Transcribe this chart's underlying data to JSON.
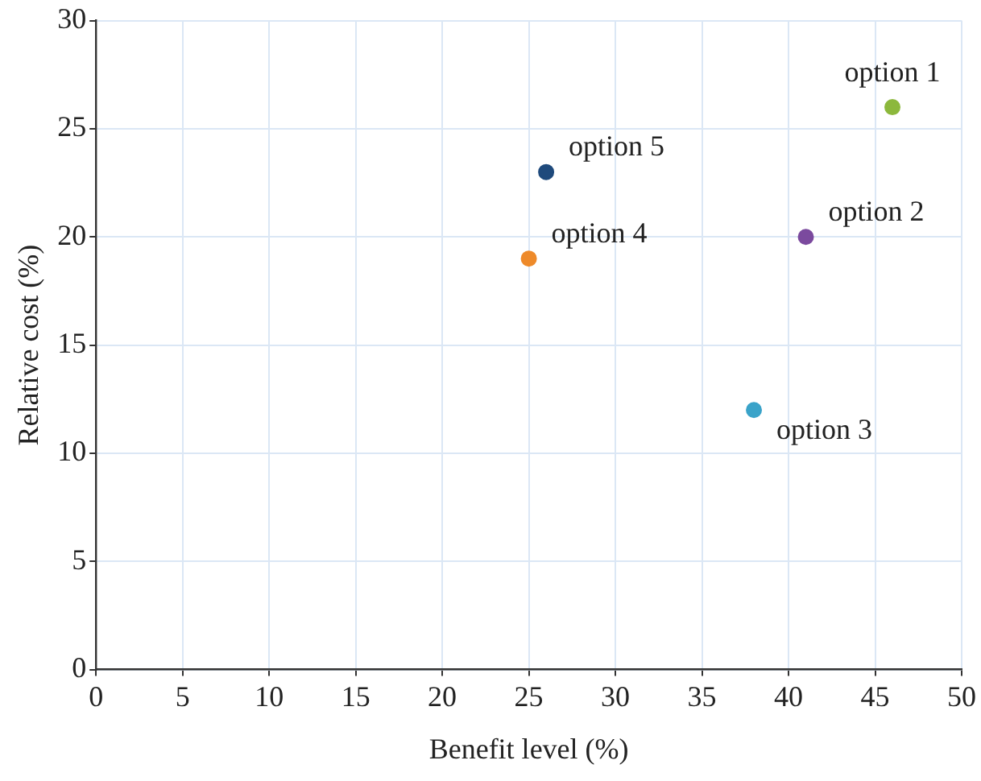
{
  "chart_data": {
    "type": "scatter",
    "xlabel": "Benefit level (%)",
    "ylabel": "Relative cost (%)",
    "series": [
      {
        "name": "option 1",
        "color": "#8cb83c",
        "x": [
          46
        ],
        "values": [
          26
        ]
      },
      {
        "name": "option 2",
        "color": "#7b4a9e",
        "x": [
          41
        ],
        "values": [
          20
        ]
      },
      {
        "name": "option 3",
        "color": "#3aa3c9",
        "x": [
          38
        ],
        "values": [
          12
        ]
      },
      {
        "name": "option 4",
        "color": "#ee8a2a",
        "x": [
          25
        ],
        "values": [
          19
        ]
      },
      {
        "name": "option 5",
        "color": "#1f4a7c",
        "x": [
          26
        ],
        "values": [
          23
        ]
      }
    ],
    "xlim": [
      0,
      50
    ],
    "xticks": [
      0,
      5,
      10,
      15,
      20,
      25,
      30,
      35,
      40,
      45,
      50
    ],
    "ylim": [
      0,
      30
    ],
    "yticks": [
      0,
      5,
      10,
      15,
      20,
      25,
      30
    ],
    "grid": true,
    "legend": false,
    "marker": "circle"
  }
}
